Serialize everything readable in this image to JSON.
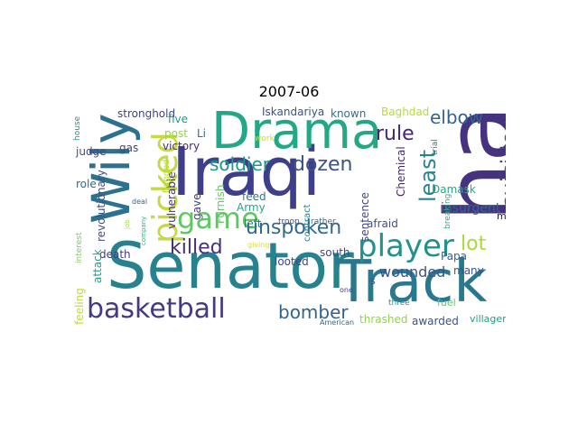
{
  "title": "2007-06",
  "palette": {
    "dark_purple": "#46327e",
    "purple": "#482878",
    "indigo": "#3e4989",
    "blue": "#31688e",
    "teal": "#26828e",
    "teal_green": "#1f9e89",
    "green": "#35b779",
    "light_green": "#6ece58",
    "yellow_green": "#b5de2b",
    "yellow": "#c8d932"
  },
  "words": [
    {
      "text": "Iraqi",
      "color": "#3e3f8a",
      "rot": "h"
    },
    {
      "text": "ha",
      "color": "#46327e",
      "rot": "v"
    },
    {
      "text": "Senator",
      "color": "#26828e",
      "rot": "h"
    },
    {
      "text": "Track",
      "color": "#2a788e",
      "rot": "h"
    },
    {
      "text": "Drama",
      "color": "#22a884",
      "rot": "h"
    },
    {
      "text": "Wily",
      "color": "#2c718e",
      "rot": "v"
    },
    {
      "text": "picked",
      "color": "#c7d940",
      "rot": "v"
    },
    {
      "text": "basketball",
      "color": "#443a83",
      "rot": "h"
    },
    {
      "text": "player",
      "color": "#21918c",
      "rot": "h"
    },
    {
      "text": "game",
      "color": "#5ec962",
      "rot": "h"
    },
    {
      "text": "unspoken",
      "color": "#31688e",
      "rot": "h"
    },
    {
      "text": "killed",
      "color": "#46307e",
      "rot": "h"
    },
    {
      "text": "soldier",
      "color": "#1f968b",
      "rot": "h"
    },
    {
      "text": "dozen",
      "color": "#3b528b",
      "rot": "h"
    },
    {
      "text": "elbow",
      "color": "#33638d",
      "rot": "h"
    },
    {
      "text": "rule",
      "color": "#482475",
      "rot": "h"
    },
    {
      "text": "least",
      "color": "#25858e",
      "rot": "v"
    },
    {
      "text": "suicide",
      "color": "#3f4788",
      "rot": "v"
    },
    {
      "text": "lot",
      "color": "#a8db34",
      "rot": "h"
    },
    {
      "text": "bomber",
      "color": "#33638d",
      "rot": "h"
    },
    {
      "text": "wounded",
      "color": "#3b528b",
      "rot": "h"
    },
    {
      "text": "stronghold",
      "color": "#414487",
      "rot": "h"
    },
    {
      "text": "Iskandariya",
      "color": "#3b528b",
      "rot": "h"
    },
    {
      "text": "known",
      "color": "#2d708e",
      "rot": "h"
    },
    {
      "text": "Baghdad",
      "color": "#b5de2b",
      "rot": "h"
    },
    {
      "text": "five",
      "color": "#1e9b8a",
      "rot": "h"
    },
    {
      "text": "post",
      "color": "#8fd744",
      "rot": "h"
    },
    {
      "text": "Li",
      "color": "#2c728e",
      "rot": "h"
    },
    {
      "text": "victory",
      "color": "#472d7b",
      "rot": "h"
    },
    {
      "text": "gas",
      "color": "#404688",
      "rot": "h"
    },
    {
      "text": "judge",
      "color": "#3e4a89",
      "rot": "h"
    },
    {
      "text": "role",
      "color": "#2f6c8e",
      "rot": "h"
    },
    {
      "text": "house",
      "color": "#1f988b",
      "rot": "v"
    },
    {
      "text": "revolutionary",
      "color": "#3d4d8a",
      "rot": "v"
    },
    {
      "text": "vulnerable",
      "color": "#46327e",
      "rot": "v"
    },
    {
      "text": "gave",
      "color": "#433e85",
      "rot": "v"
    },
    {
      "text": "Furnish",
      "color": "#5ec962",
      "rot": "v"
    },
    {
      "text": "flagged",
      "color": "#b5de2b",
      "rot": "v"
    },
    {
      "text": "work",
      "color": "#c8e020",
      "rot": "h"
    },
    {
      "text": "sentence",
      "color": "#3e4989",
      "rot": "v"
    },
    {
      "text": "Chemical",
      "color": "#482475",
      "rot": "v"
    },
    {
      "text": "trial",
      "color": "#26828e",
      "rot": "v"
    },
    {
      "text": "Damask",
      "color": "#22a884",
      "rot": "h"
    },
    {
      "text": "insurgent",
      "color": "#31688e",
      "rot": "h"
    },
    {
      "text": "man",
      "color": "#440154",
      "rot": "h"
    },
    {
      "text": "breaking",
      "color": "#2db27d",
      "rot": "v"
    },
    {
      "text": "afraid",
      "color": "#3b528b",
      "rot": "h"
    },
    {
      "text": "left",
      "color": "#2c728e",
      "rot": "h"
    },
    {
      "text": "troop",
      "color": "#3e4989",
      "rot": "h"
    },
    {
      "text": "rather",
      "color": "#31688e",
      "rot": "h"
    },
    {
      "text": "south",
      "color": "#3f4788",
      "rot": "h"
    },
    {
      "text": "Papa",
      "color": "#33638d",
      "rot": "h"
    },
    {
      "text": "many",
      "color": "#3b528b",
      "rot": "h"
    },
    {
      "text": "feed",
      "color": "#2a788e",
      "rot": "h"
    },
    {
      "text": "Army",
      "color": "#22a884",
      "rot": "h"
    },
    {
      "text": "contract",
      "color": "#26828e",
      "rot": "v"
    },
    {
      "text": "looted",
      "color": "#414487",
      "rot": "h"
    },
    {
      "text": "death",
      "color": "#443983",
      "rot": "h"
    },
    {
      "text": "interest",
      "color": "#7ad151",
      "rot": "v"
    },
    {
      "text": "attack",
      "color": "#1f9e89",
      "rot": "v"
    },
    {
      "text": "feeling",
      "color": "#bddf26",
      "rot": "v"
    },
    {
      "text": "company",
      "color": "#2db27d",
      "rot": "v"
    },
    {
      "text": "deal",
      "color": "#31688e",
      "rot": "h"
    },
    {
      "text": "job",
      "color": "#9fda3a",
      "rot": "v"
    },
    {
      "text": "giving",
      "color": "#d2e21b",
      "rot": "h"
    },
    {
      "text": "one",
      "color": "#414487",
      "rot": "h"
    },
    {
      "text": "s",
      "color": "#3b528b",
      "rot": "h"
    },
    {
      "text": "three",
      "color": "#21918c",
      "rot": "h"
    },
    {
      "text": "fuel",
      "color": "#5ec962",
      "rot": "h"
    },
    {
      "text": "thrashed",
      "color": "#8fd744",
      "rot": "h"
    },
    {
      "text": "awarded",
      "color": "#3b528b",
      "rot": "h"
    },
    {
      "text": "villager",
      "color": "#1f9e89",
      "rot": "h"
    },
    {
      "text": "American",
      "color": "#33638d",
      "rot": "h"
    }
  ]
}
